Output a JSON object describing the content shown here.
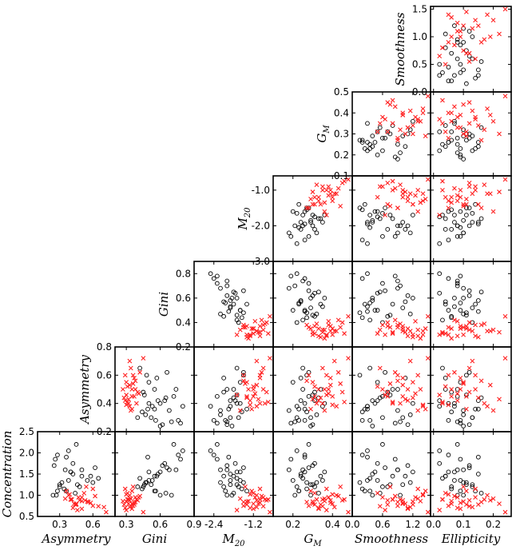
{
  "chart_data": {
    "type": "scatter",
    "kind": "corner-scatter-matrix",
    "marker_styles": {
      "class_a": {
        "marker": "circle",
        "color": "#000000"
      },
      "class_b": {
        "marker": "x",
        "color": "#ff2020"
      }
    },
    "columns": [
      {
        "label": "Asymmetry",
        "sub": "",
        "ticks": [
          "0.3",
          "0.6"
        ],
        "lim": [
          0.1,
          0.8
        ]
      },
      {
        "label": "Gini",
        "sub": "",
        "ticks": [
          "0.3",
          "0.6",
          "0.9"
        ],
        "lim": [
          0.2,
          0.9
        ]
      },
      {
        "label": "M",
        "sub": "20",
        "ticks": [
          "-2.4",
          "-1.2"
        ],
        "lim": [
          -3.0,
          -0.6
        ]
      },
      {
        "label": "G",
        "sub": "M",
        "ticks": [
          "0.2",
          "0.4"
        ],
        "lim": [
          0.1,
          0.5
        ]
      },
      {
        "label": "Smoothness",
        "sub": "",
        "ticks": [
          "0.0",
          "0.6",
          "1.2"
        ],
        "lim": [
          0.0,
          1.55
        ]
      },
      {
        "label": "Ellipticity",
        "sub": "",
        "ticks": [
          "0.0",
          "0.1",
          "0.2"
        ],
        "lim": [
          -0.01,
          0.26
        ]
      }
    ],
    "rows": [
      {
        "label": "Smoothness",
        "sub": "",
        "ticks": [
          "0.0",
          "0.5",
          "1.0",
          "1.5"
        ],
        "lim": [
          0.0,
          1.55
        ]
      },
      {
        "label": "G",
        "sub": "M",
        "ticks": [
          "0.1",
          "0.2",
          "0.3",
          "0.4",
          "0.5"
        ],
        "lim": [
          0.1,
          0.5
        ]
      },
      {
        "label": "M",
        "sub": "20",
        "ticks": [
          "-1.0",
          "-2.0",
          "-3.0"
        ],
        "lim": [
          -3.0,
          -0.6
        ]
      },
      {
        "label": "Gini",
        "sub": "",
        "ticks": [
          "0.2",
          "0.4",
          "0.6",
          "0.8"
        ],
        "lim": [
          0.2,
          0.9
        ]
      },
      {
        "label": "Asymmetry",
        "sub": "",
        "ticks": [
          "0.2",
          "0.4",
          "0.6",
          "0.8"
        ],
        "lim": [
          0.2,
          0.8
        ]
      },
      {
        "label": "Concentration",
        "sub": "",
        "ticks": [
          "0.5",
          "1.0",
          "1.5",
          "2.0",
          "2.5"
        ],
        "lim": [
          0.5,
          2.5
        ]
      }
    ],
    "panel_pairs": [
      {
        "row": "Smoothness",
        "column": "Ellipticity"
      },
      {
        "row": "G_M",
        "column": "Smoothness"
      },
      {
        "row": "G_M",
        "column": "Ellipticity"
      },
      {
        "row": "M_20",
        "column": "G_M"
      },
      {
        "row": "M_20",
        "column": "Smoothness"
      },
      {
        "row": "M_20",
        "column": "Ellipticity"
      },
      {
        "row": "Gini",
        "column": "M_20"
      },
      {
        "row": "Gini",
        "column": "G_M"
      },
      {
        "row": "Gini",
        "column": "Smoothness"
      },
      {
        "row": "Gini",
        "column": "Ellipticity"
      },
      {
        "row": "Asymmetry",
        "column": "Gini"
      },
      {
        "row": "Asymmetry",
        "column": "M_20"
      },
      {
        "row": "Asymmetry",
        "column": "G_M"
      },
      {
        "row": "Asymmetry",
        "column": "Smoothness"
      },
      {
        "row": "Asymmetry",
        "column": "Ellipticity"
      },
      {
        "row": "Concentration",
        "column": "Asymmetry"
      },
      {
        "row": "Concentration",
        "column": "Gini"
      },
      {
        "row": "Concentration",
        "column": "M_20"
      },
      {
        "row": "Concentration",
        "column": "G_M"
      },
      {
        "row": "Concentration",
        "column": "Smoothness"
      },
      {
        "row": "Concentration",
        "column": "Ellipticity"
      }
    ],
    "samples_class_a": {
      "Concentration": [
        2.05,
        1.95,
        2.2,
        1.6,
        1.7,
        1.5,
        1.45,
        1.55,
        1.35,
        1.3,
        1.25,
        1.2,
        1.4,
        1.1,
        1.05,
        1.0,
        1.3,
        1.55,
        1.65,
        1.85,
        1.35,
        1.25,
        1.45,
        1.15,
        1.2,
        1.0,
        1.6,
        1.75,
        1.9,
        1.1
      ],
      "Asymmetry": [
        0.38,
        0.28,
        0.45,
        0.35,
        0.25,
        0.42,
        0.5,
        0.4,
        0.55,
        0.6,
        0.3,
        0.48,
        0.65,
        0.36,
        0.44,
        0.27,
        0.32,
        0.4,
        0.62,
        0.26,
        0.38,
        0.46,
        0.58,
        0.34,
        0.3,
        0.24,
        0.5,
        0.42,
        0.36,
        0.28
      ],
      "Gini": [
        0.8,
        0.76,
        0.72,
        0.68,
        0.62,
        0.58,
        0.55,
        0.6,
        0.5,
        0.48,
        0.52,
        0.45,
        0.42,
        0.55,
        0.65,
        0.7,
        0.47,
        0.5,
        0.66,
        0.78,
        0.53,
        0.46,
        0.57,
        0.44,
        0.4,
        0.6,
        0.74,
        0.64,
        0.49,
        0.56
      ],
      "M_20": [
        -2.5,
        -2.4,
        -2.3,
        -2.2,
        -2.0,
        -1.9,
        -1.8,
        -1.7,
        -1.6,
        -1.5,
        -1.9,
        -2.1,
        -1.7,
        -1.4,
        -1.8,
        -2.0,
        -2.2,
        -1.6,
        -1.5,
        -2.3,
        -1.9,
        -1.7,
        -2.1,
        -1.55,
        -1.65,
        -1.85,
        -2.0,
        -1.75,
        -1.95,
        -2.05
      ],
      "G_M": [
        0.22,
        0.26,
        0.28,
        0.18,
        0.3,
        0.24,
        0.34,
        0.36,
        0.2,
        0.27,
        0.29,
        0.31,
        0.25,
        0.23,
        0.33,
        0.21,
        0.32,
        0.26,
        0.28,
        0.19,
        0.35,
        0.3,
        0.24,
        0.27,
        0.22,
        0.29,
        0.25,
        0.31,
        0.26,
        0.23
      ],
      "Smoothness": [
        0.3,
        0.2,
        0.6,
        0.9,
        1.1,
        0.4,
        0.8,
        1.2,
        0.5,
        0.15,
        1.0,
        0.7,
        0.35,
        0.25,
        0.55,
        0.95,
        1.15,
        0.45,
        0.65,
        0.85,
        0.3,
        0.75,
        1.05,
        0.2,
        0.6,
        0.4,
        0.9,
        0.5,
        0.3,
        0.35
      ],
      "Ellipticity": [
        0.02,
        0.05,
        0.08,
        0.1,
        0.12,
        0.15,
        0.04,
        0.07,
        0.09,
        0.11,
        0.13,
        0.06,
        0.03,
        0.14,
        0.16,
        0.08,
        0.1,
        0.05,
        0.12,
        0.09,
        0.07,
        0.11,
        0.04,
        0.06,
        0.13,
        0.1,
        0.08,
        0.02,
        0.15,
        0.09
      ]
    },
    "samples_class_b": {
      "Concentration": [
        0.9,
        0.8,
        0.85,
        0.95,
        1.0,
        0.75,
        0.7,
        0.88,
        0.92,
        1.05,
        0.82,
        0.78,
        0.98,
        1.1,
        0.65,
        0.72,
        0.9,
        0.86,
        1.2,
        0.8,
        0.95,
        0.74,
        1.02,
        0.84,
        0.68,
        0.9,
        1.15,
        0.78,
        0.88,
        0.6
      ],
      "Asymmetry": [
        0.4,
        0.45,
        0.55,
        0.5,
        0.38,
        0.6,
        0.42,
        0.48,
        0.35,
        0.52,
        0.58,
        0.44,
        0.62,
        0.36,
        0.46,
        0.7,
        0.4,
        0.5,
        0.54,
        0.43,
        0.47,
        0.65,
        0.39,
        0.56,
        0.5,
        0.41,
        0.6,
        0.45,
        0.53,
        0.72
      ],
      "Gini": [
        0.32,
        0.35,
        0.3,
        0.38,
        0.33,
        0.36,
        0.29,
        0.4,
        0.34,
        0.31,
        0.37,
        0.28,
        0.42,
        0.35,
        0.3,
        0.33,
        0.39,
        0.27,
        0.36,
        0.32,
        0.41,
        0.34,
        0.3,
        0.38,
        0.35,
        0.31,
        0.29,
        0.37,
        0.33,
        0.45
      ],
      "M_20": [
        -1.0,
        -1.2,
        -1.4,
        -0.9,
        -1.1,
        -1.5,
        -1.3,
        -0.8,
        -1.6,
        -1.2,
        -1.0,
        -1.4,
        -0.95,
        -1.25,
        -1.7,
        -1.1,
        -0.85,
        -1.35,
        -1.45,
        -1.05,
        -1.15,
        -0.9,
        -1.3,
        -1.5,
        -1.2,
        -0.75,
        -1.0,
        -1.4,
        -1.1,
        -0.7
      ],
      "G_M": [
        0.35,
        0.4,
        0.3,
        0.38,
        0.42,
        0.28,
        0.33,
        0.45,
        0.36,
        0.31,
        0.39,
        0.34,
        0.43,
        0.29,
        0.37,
        0.41,
        0.32,
        0.36,
        0.44,
        0.3,
        0.38,
        0.35,
        0.4,
        0.27,
        0.33,
        0.46,
        0.37,
        0.31,
        0.39,
        0.48
      ],
      "Smoothness": [
        0.8,
        1.0,
        1.2,
        0.6,
        1.4,
        0.9,
        1.1,
        0.7,
        1.3,
        0.5,
        1.0,
        1.2,
        0.85,
        1.45,
        0.65,
        1.15,
        0.95,
        1.35,
        0.75,
        1.05,
        1.25,
        0.55,
        1.4,
        0.9,
        1.1,
        0.8,
        1.3,
        0.7,
        1.0,
        1.5
      ],
      "Ellipticity": [
        0.03,
        0.06,
        0.1,
        0.14,
        0.18,
        0.05,
        0.08,
        0.12,
        0.2,
        0.04,
        0.09,
        0.15,
        0.07,
        0.11,
        0.02,
        0.13,
        0.17,
        0.06,
        0.1,
        0.22,
        0.08,
        0.12,
        0.05,
        0.16,
        0.09,
        0.03,
        0.14,
        0.11,
        0.19,
        0.24
      ]
    }
  }
}
